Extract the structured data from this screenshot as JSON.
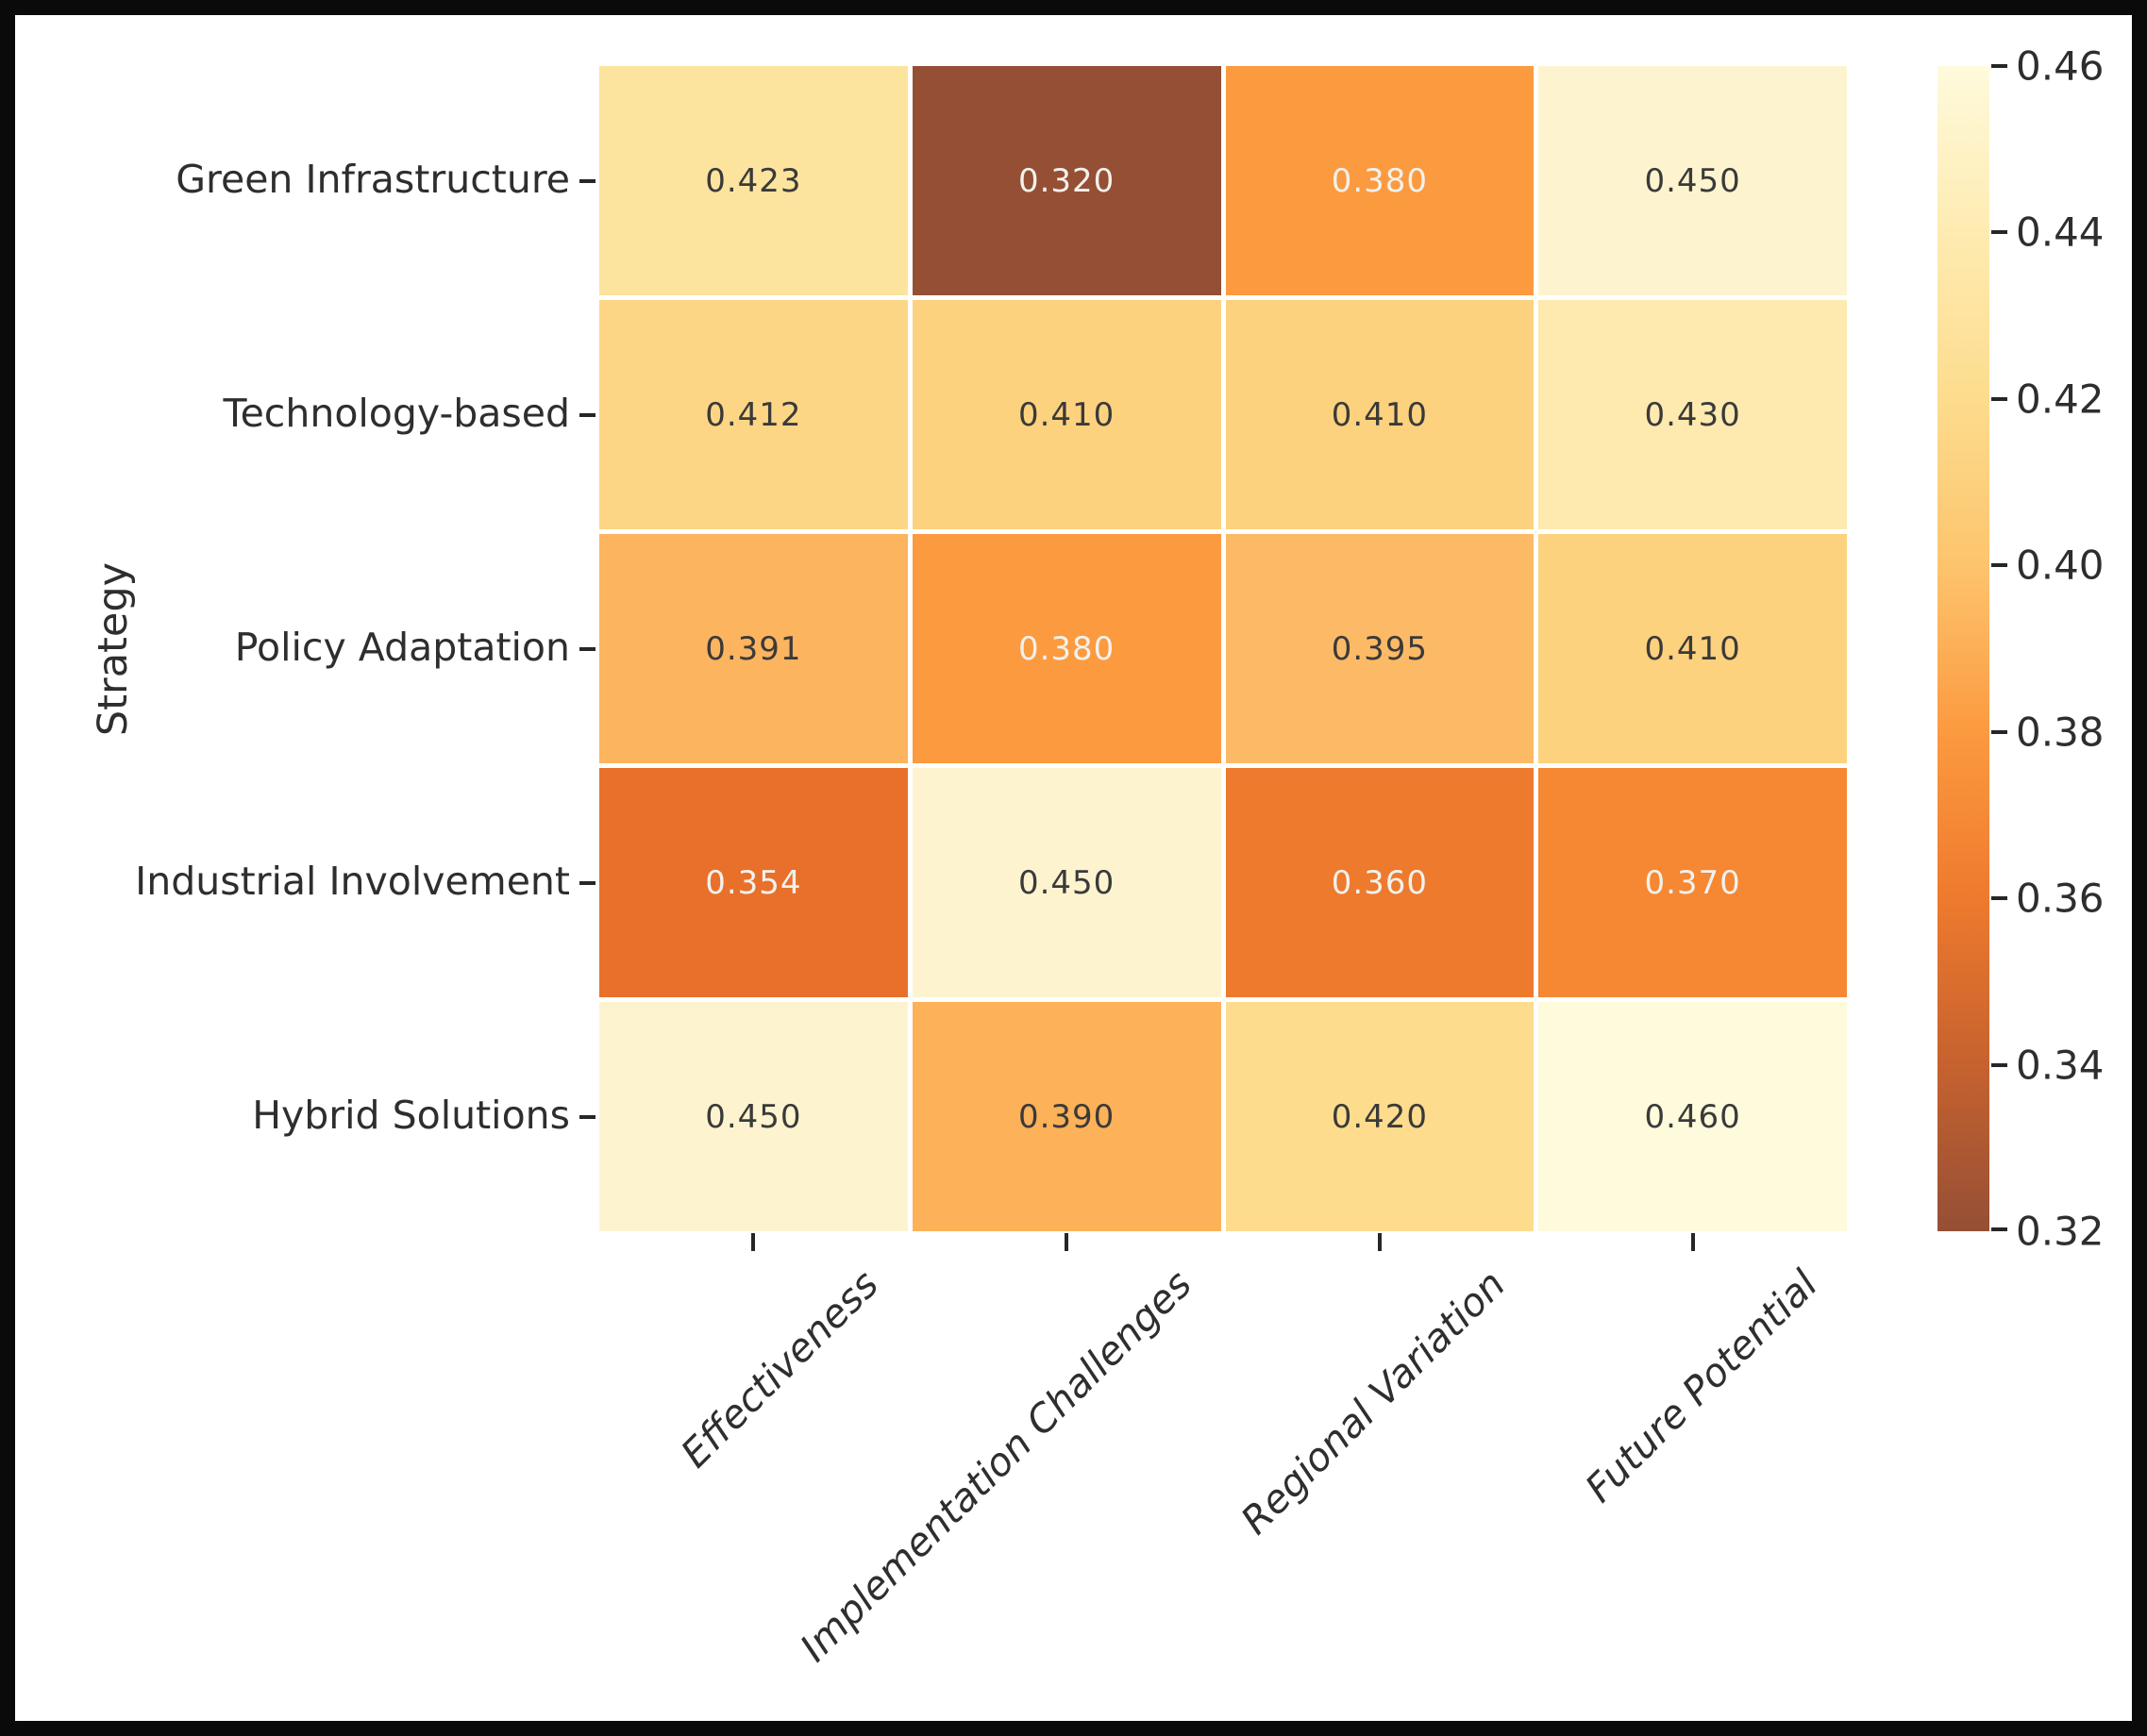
{
  "figure": {
    "ylabel": "Strategy"
  },
  "chart_data": {
    "type": "heatmap",
    "title": "",
    "xlabel": "",
    "ylabel": "Strategy",
    "categories_y": [
      "Green Infrastructure",
      "Technology-based",
      "Policy Adaptation",
      "Industrial Involvement",
      "Hybrid Solutions"
    ],
    "categories_x": [
      "Effectiveness",
      "Implementation Challenges",
      "Regional Variation",
      "Future Potential"
    ],
    "values": [
      [
        0.423,
        0.32,
        0.38,
        0.45
      ],
      [
        0.412,
        0.41,
        0.41,
        0.43
      ],
      [
        0.391,
        0.38,
        0.395,
        0.41
      ],
      [
        0.354,
        0.45,
        0.36,
        0.37
      ],
      [
        0.45,
        0.39,
        0.42,
        0.46
      ]
    ],
    "value_decimals": 3,
    "colormap": "YlOrBr_r",
    "vmin": 0.32,
    "vmax": 0.46,
    "grid_lines": "white",
    "legend_position": "right-colorbar",
    "cell_colors": [
      [
        "#FCE49E",
        "#954F35",
        "#FC9A40",
        "#FDF4CF"
      ],
      [
        "#FDD685",
        "#FDD27E",
        "#FDD27E",
        "#FEEAAF"
      ],
      [
        "#FDB45F",
        "#FC9A40",
        "#FDBA66",
        "#FDD27E"
      ],
      [
        "#E8702B",
        "#FDF4CF",
        "#EE7A2D",
        "#F68733"
      ],
      [
        "#FDF4CF",
        "#FDB158",
        "#FDDC8D",
        "#FEFADC"
      ]
    ],
    "light_text_cells": [
      [
        false,
        true,
        true,
        false
      ],
      [
        false,
        false,
        false,
        false
      ],
      [
        false,
        true,
        false,
        false
      ],
      [
        true,
        false,
        true,
        true
      ],
      [
        false,
        false,
        false,
        false
      ]
    ],
    "colorbar": {
      "tick_labels": [
        "0.46",
        "0.44",
        "0.42",
        "0.40",
        "0.38",
        "0.36",
        "0.34",
        "0.32"
      ],
      "gradient_stops": [
        {
          "pos": 0,
          "color": "#FEFADC"
        },
        {
          "pos": 14.3,
          "color": "#FEEBB1"
        },
        {
          "pos": 28.6,
          "color": "#FDDC8D"
        },
        {
          "pos": 42.9,
          "color": "#FDC46D"
        },
        {
          "pos": 57.1,
          "color": "#FC9A40"
        },
        {
          "pos": 71.4,
          "color": "#EE7A2D"
        },
        {
          "pos": 85.7,
          "color": "#C6622F"
        },
        {
          "pos": 100,
          "color": "#954F35"
        }
      ]
    }
  }
}
